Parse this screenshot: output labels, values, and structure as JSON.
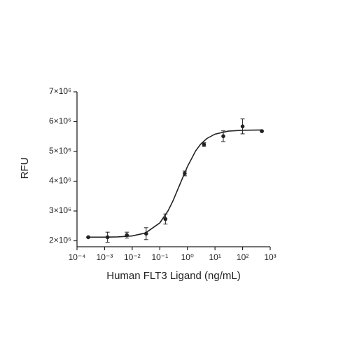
{
  "chart_data": {
    "type": "dose-response",
    "xlabel": "Human FLT3 Ligand (ng/mL)",
    "ylabel": "RFU",
    "xscale": "log",
    "color": "#222222",
    "xlim": [
      0.0001,
      1000
    ],
    "xticks": [
      {
        "value": 0.0001,
        "label": "10⁻⁴"
      },
      {
        "value": 0.001,
        "label": "10⁻³"
      },
      {
        "value": 0.01,
        "label": "10⁻²"
      },
      {
        "value": 0.1,
        "label": "10⁻¹"
      },
      {
        "value": 1,
        "label": "10⁰"
      },
      {
        "value": 10,
        "label": "10¹"
      },
      {
        "value": 100,
        "label": "10²"
      },
      {
        "value": 1000,
        "label": "10³"
      }
    ],
    "ylim": [
      1800000,
      7000000
    ],
    "yticks": [
      {
        "value": 2000000,
        "label": "2×10⁶"
      },
      {
        "value": 3000000,
        "label": "3×10⁶"
      },
      {
        "value": 4000000,
        "label": "4×10⁶"
      },
      {
        "value": 5000000,
        "label": "5×10⁶"
      },
      {
        "value": 6000000,
        "label": "6×10⁶"
      },
      {
        "value": 7000000,
        "label": "7×10⁶"
      }
    ],
    "x": [
      0.000256,
      0.00128,
      0.0064,
      0.032,
      0.16,
      0.8,
      4,
      20,
      100,
      500
    ],
    "values": [
      2120000,
      2120000,
      2190000,
      2240000,
      2730000,
      4260000,
      5230000,
      5510000,
      5840000,
      5680000
    ],
    "errors": [
      0,
      170000,
      100000,
      200000,
      170000,
      80000,
      60000,
      180000,
      250000,
      0
    ],
    "curve": {
      "x": [
        0.000256,
        0.001,
        0.003,
        0.01,
        0.03,
        0.1,
        0.2,
        0.3,
        0.5,
        1,
        2,
        3,
        5,
        10,
        30,
        100,
        500
      ],
      "values": [
        2121000,
        2123000,
        2132000,
        2163000,
        2260000,
        2600000,
        3010000,
        3340000,
        3830000,
        4490000,
        5020000,
        5240000,
        5430000,
        5580000,
        5680000,
        5710000,
        5720000
      ]
    }
  }
}
